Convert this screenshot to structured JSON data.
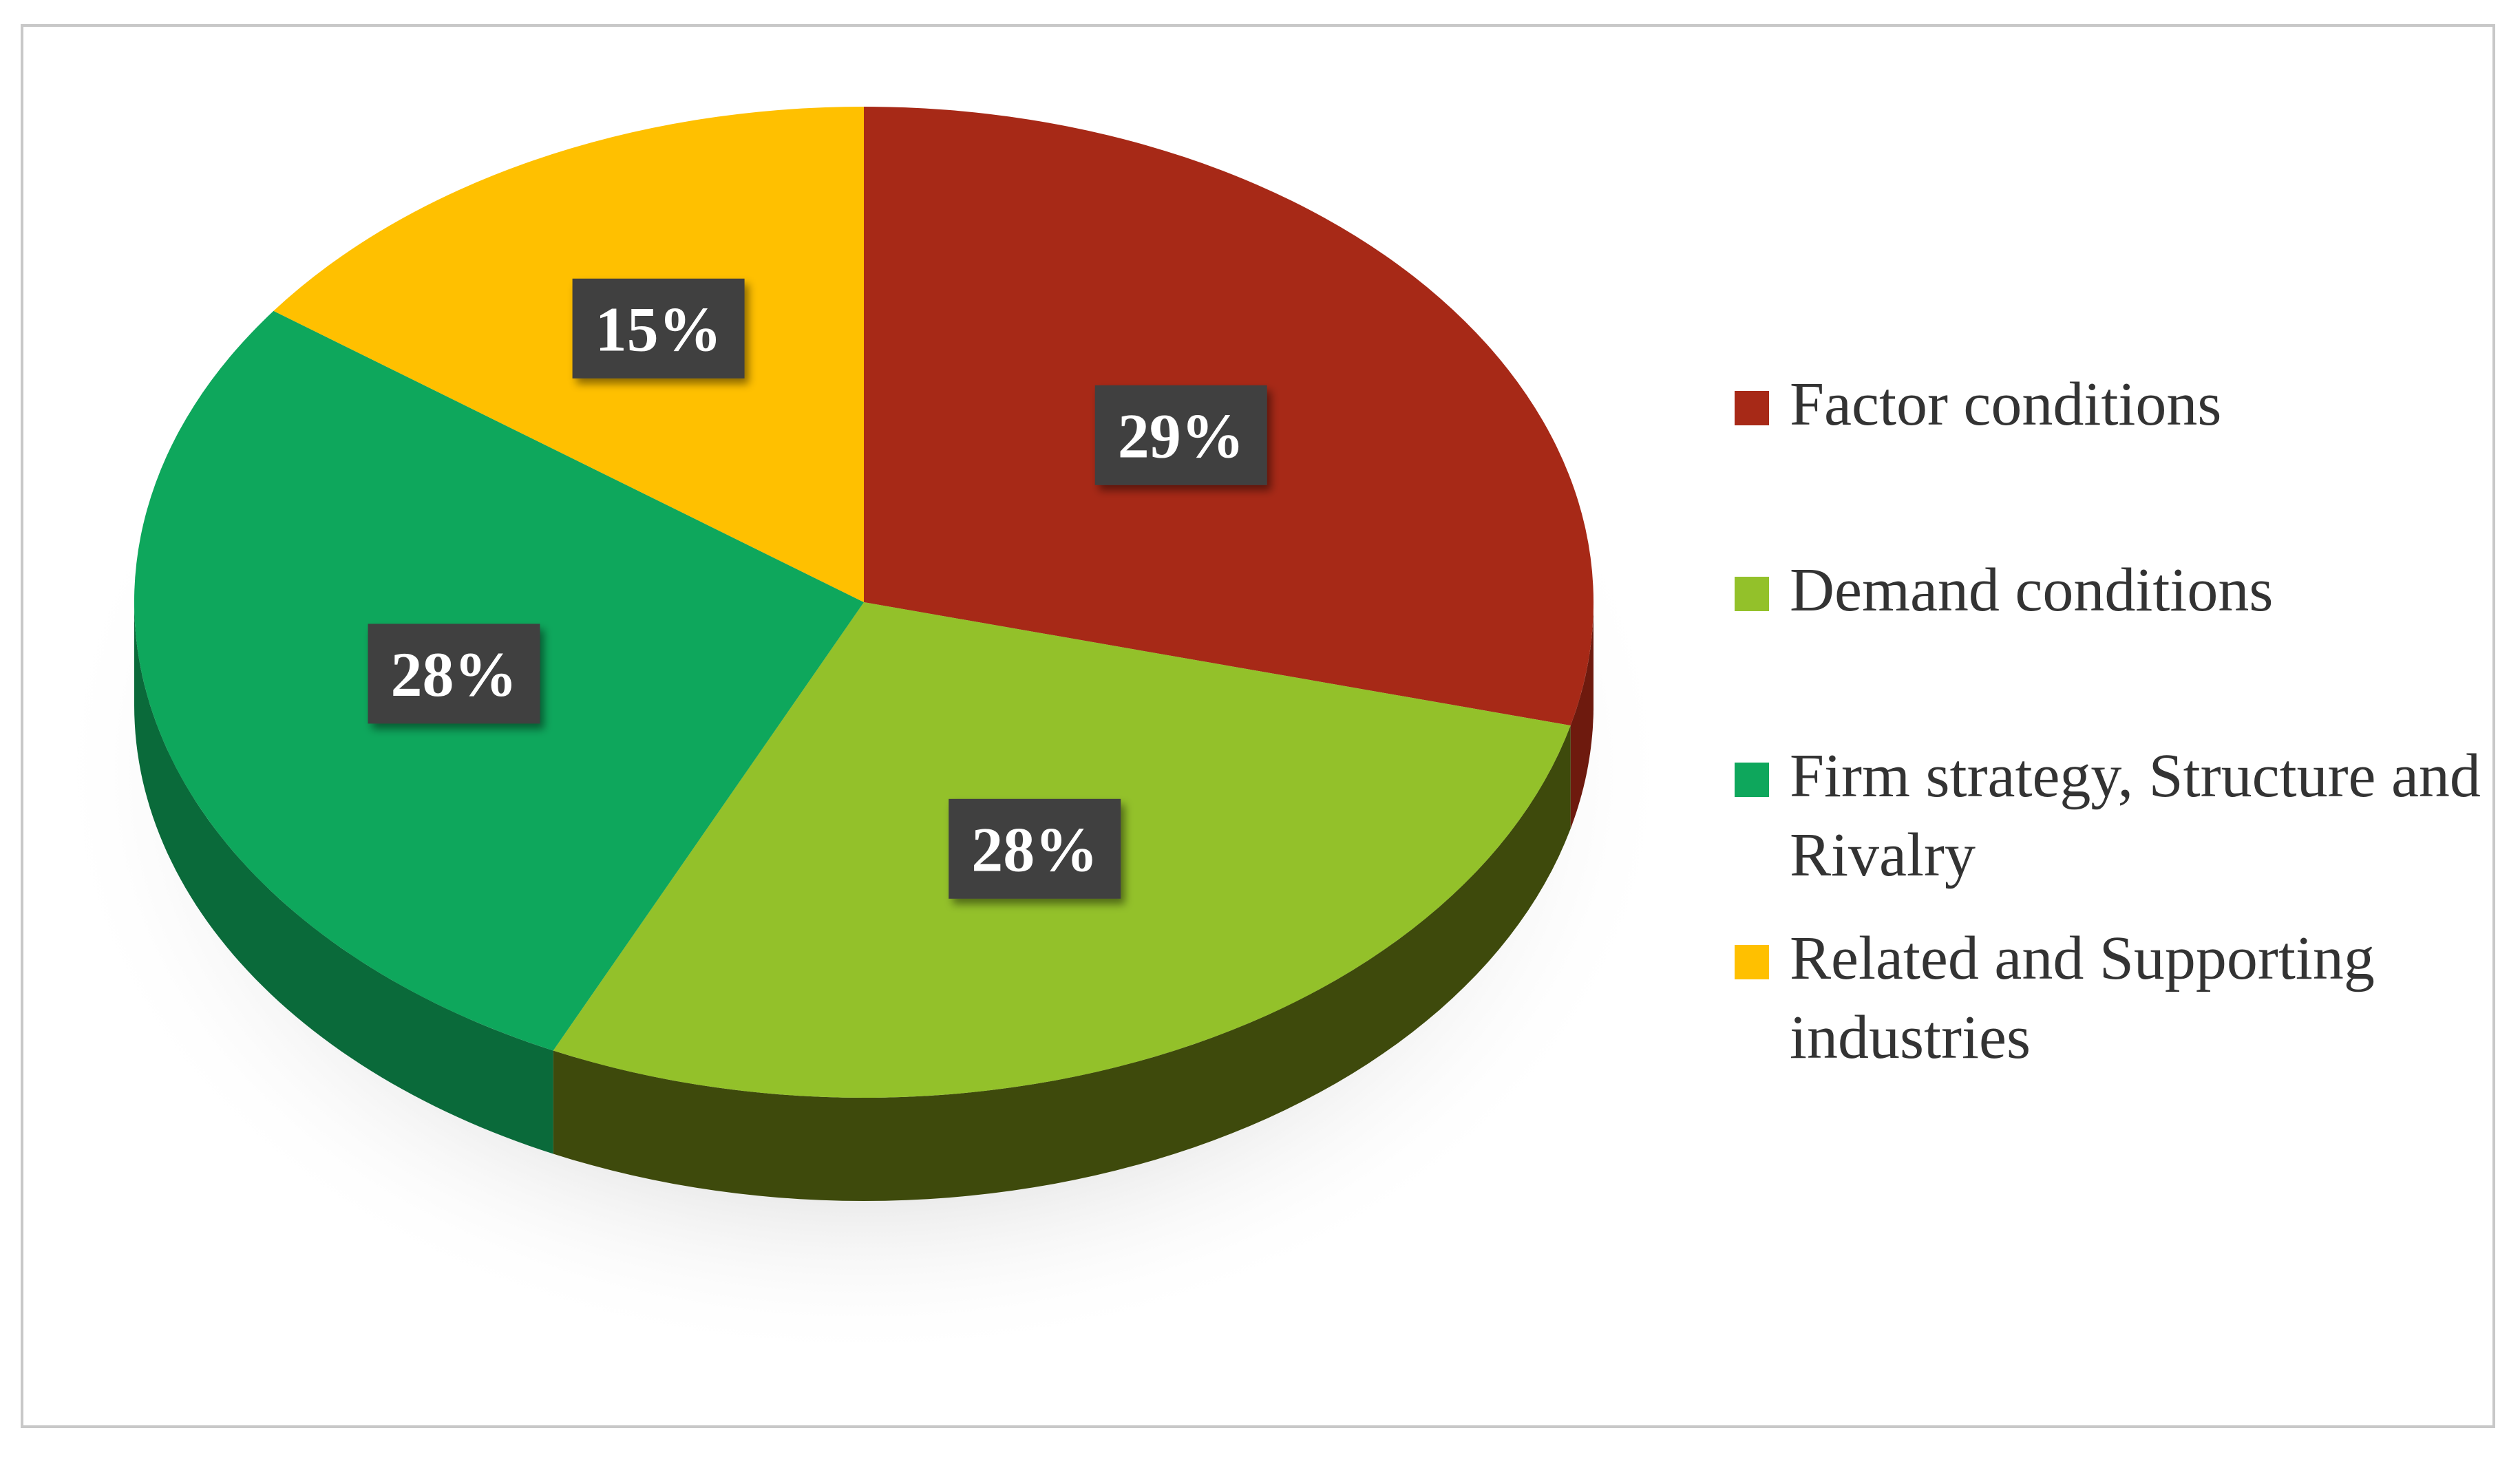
{
  "chart_data": {
    "type": "pie",
    "categories": [
      "Factor conditions",
      "Demand conditions",
      "Firm strategy, Structure and Rivalry",
      "Related and Supporting industries"
    ],
    "values": [
      29,
      28,
      28,
      15
    ],
    "labels": [
      "29%",
      "28%",
      "28%",
      "15%"
    ],
    "colors": [
      "#a72917",
      "#93c12a",
      "#0ea75c",
      "#ffc000"
    ],
    "side_colors": [
      "#6e1a0e",
      "#3e4a0c",
      "#0a6a3a",
      "#b08400"
    ],
    "legend": {
      "position": "right",
      "entries": [
        "Factor conditions",
        "Demand conditions",
        "Firm strategy, Structure and Rivalry",
        "Related and Supporting industries"
      ]
    },
    "label_box_color": "#3f3f3f",
    "label_text_color": "#ffffff"
  }
}
